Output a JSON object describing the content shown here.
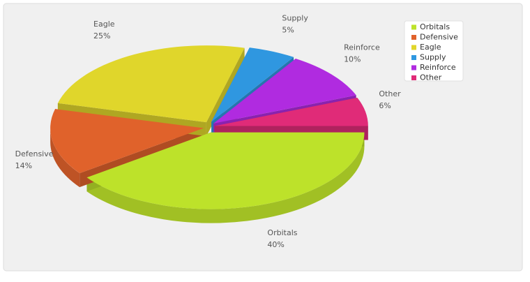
{
  "chart_data": {
    "type": "pie3d",
    "categories": [
      "Orbitals",
      "Defensive",
      "Eagle",
      "Supply",
      "Reinforce",
      "Other"
    ],
    "values": [
      40,
      14,
      25,
      5,
      10,
      6
    ],
    "value_labels": [
      "40%",
      "14%",
      "25%",
      "5%",
      "10%",
      "6%"
    ],
    "colors": [
      "#bde22a",
      "#e0622b",
      "#e0d62b",
      "#2f97e0",
      "#b02be0",
      "#e02b78"
    ],
    "legend": "top-right"
  }
}
